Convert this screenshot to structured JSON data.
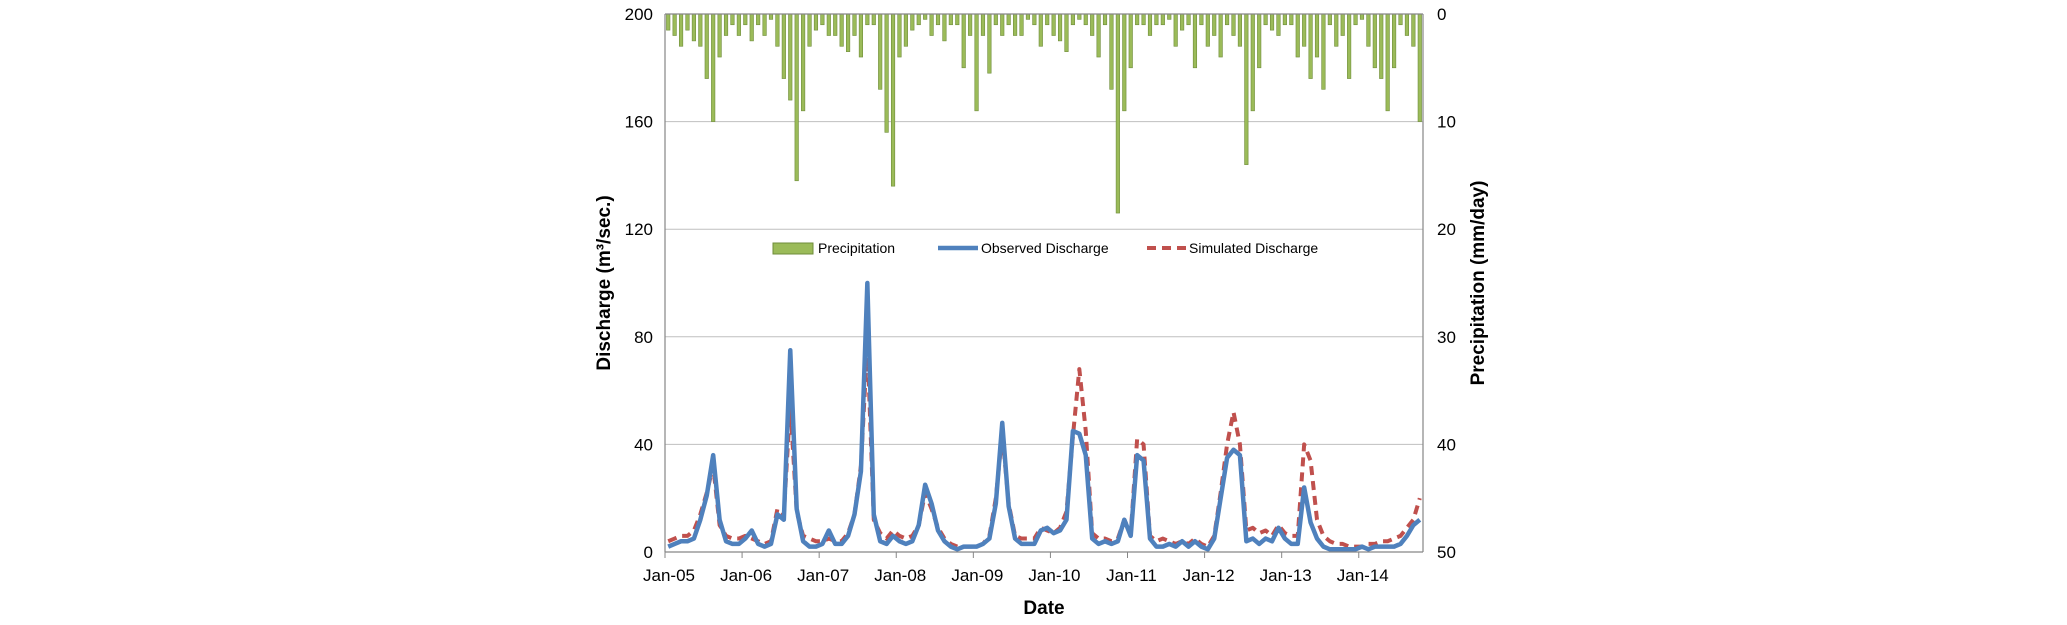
{
  "chart_data": {
    "type": "line",
    "title": "",
    "xlabel": "Date",
    "ylabel_left": "Discharge (m³/sec.)",
    "ylabel_right": "Precipitation (mm/day)",
    "left_ylim": [
      0,
      200
    ],
    "left_yticks": [
      0,
      40,
      80,
      120,
      160,
      200
    ],
    "right_ylim": [
      0,
      50
    ],
    "right_yticks": [
      0,
      10,
      20,
      30,
      40,
      50
    ],
    "right_axis_inverted": true,
    "x_start": "Jan-05",
    "x_ticks": [
      "Jan-05",
      "Jan-06",
      "Jan-07",
      "Jan-08",
      "Jan-09",
      "Jan-10",
      "Jan-11",
      "Jan-12",
      "Jan-13",
      "Jan-14"
    ],
    "months": 118,
    "grid": "horizontal",
    "legend_position": "center",
    "colors": {
      "precipitation": "#9bbb59",
      "precipitation_edge": "#6f8d3a",
      "observed": "#4f81bd",
      "simulated": "#c0504d",
      "grid": "#bfbfbf",
      "axis": "#868686"
    },
    "series": [
      {
        "name": "Precipitation",
        "kind": "bar",
        "axis": "right",
        "values": [
          1.5,
          2,
          3,
          1.5,
          2.5,
          3,
          6,
          10,
          4,
          2,
          1,
          2,
          1,
          2.5,
          1,
          2,
          0.5,
          3,
          6,
          8,
          15.5,
          9,
          3,
          1.5,
          1,
          2,
          2,
          3,
          3.5,
          2,
          4,
          1,
          1,
          7,
          11,
          16,
          4,
          3,
          1.5,
          1,
          0.5,
          2,
          1,
          2.5,
          1,
          1,
          5,
          2,
          9,
          2,
          5.5,
          1,
          2,
          1,
          2,
          2,
          0.5,
          1,
          3,
          1,
          2,
          2.5,
          3.5,
          1,
          0.5,
          1,
          2,
          4,
          1,
          7,
          18.5,
          9,
          5,
          1,
          1,
          2,
          1,
          1,
          0.5,
          3,
          1.5,
          1,
          5,
          1,
          3,
          2,
          4,
          1,
          2,
          3,
          14,
          9,
          5,
          1,
          1.5,
          2,
          1,
          1,
          4,
          3,
          6,
          4,
          7,
          1,
          3,
          2,
          6,
          1,
          0.5,
          3,
          5,
          6,
          9,
          5,
          1,
          2,
          3,
          10
        ]
      },
      {
        "name": "Observed Discharge",
        "kind": "line",
        "axis": "left",
        "values": [
          2,
          3,
          4,
          4,
          5,
          12,
          21,
          36,
          12,
          4,
          3,
          3,
          5,
          8,
          3,
          2,
          3,
          14,
          12,
          75,
          16,
          4,
          2,
          2,
          3,
          8,
          3,
          3,
          6,
          14,
          30,
          100,
          14,
          4,
          3,
          6,
          4,
          3,
          4,
          10,
          25,
          18,
          8,
          4,
          2,
          1,
          2,
          2,
          2,
          3,
          5,
          18,
          48,
          17,
          5,
          3,
          3,
          3,
          8,
          9,
          7,
          8,
          12,
          45,
          44,
          36,
          5,
          3,
          4,
          3,
          4,
          12,
          6,
          36,
          34,
          5,
          2,
          2,
          3,
          2,
          4,
          2,
          4,
          2,
          1,
          5,
          20,
          35,
          38,
          36,
          4,
          5,
          3,
          5,
          4,
          9,
          5,
          3,
          3,
          24,
          11,
          5,
          2,
          1,
          1,
          1,
          1,
          1,
          2,
          1,
          2,
          2,
          2,
          2,
          3,
          6,
          10,
          12
        ]
      },
      {
        "name": "Simulated Discharge",
        "kind": "line-dashed",
        "axis": "left",
        "values": [
          4,
          5,
          6,
          6,
          8,
          14,
          22,
          32,
          10,
          6,
          5,
          5,
          6,
          5,
          4,
          3,
          4,
          16,
          14,
          55,
          15,
          6,
          5,
          4,
          4,
          5,
          4,
          4,
          7,
          14,
          32,
          78,
          12,
          7,
          5,
          8,
          6,
          5,
          6,
          10,
          22,
          16,
          9,
          5,
          3,
          2,
          2,
          2,
          2,
          3,
          6,
          20,
          44,
          18,
          6,
          5,
          5,
          5,
          9,
          8,
          7,
          9,
          15,
          43,
          68,
          45,
          7,
          5,
          5,
          4,
          5,
          12,
          7,
          42,
          40,
          6,
          4,
          5,
          4,
          3,
          4,
          3,
          5,
          3,
          2,
          6,
          22,
          40,
          52,
          40,
          8,
          9,
          7,
          8,
          6,
          10,
          7,
          6,
          6,
          40,
          34,
          12,
          6,
          4,
          3,
          3,
          2,
          2,
          2,
          3,
          3,
          4,
          4,
          5,
          6,
          9,
          12,
          20
        ]
      }
    ]
  }
}
